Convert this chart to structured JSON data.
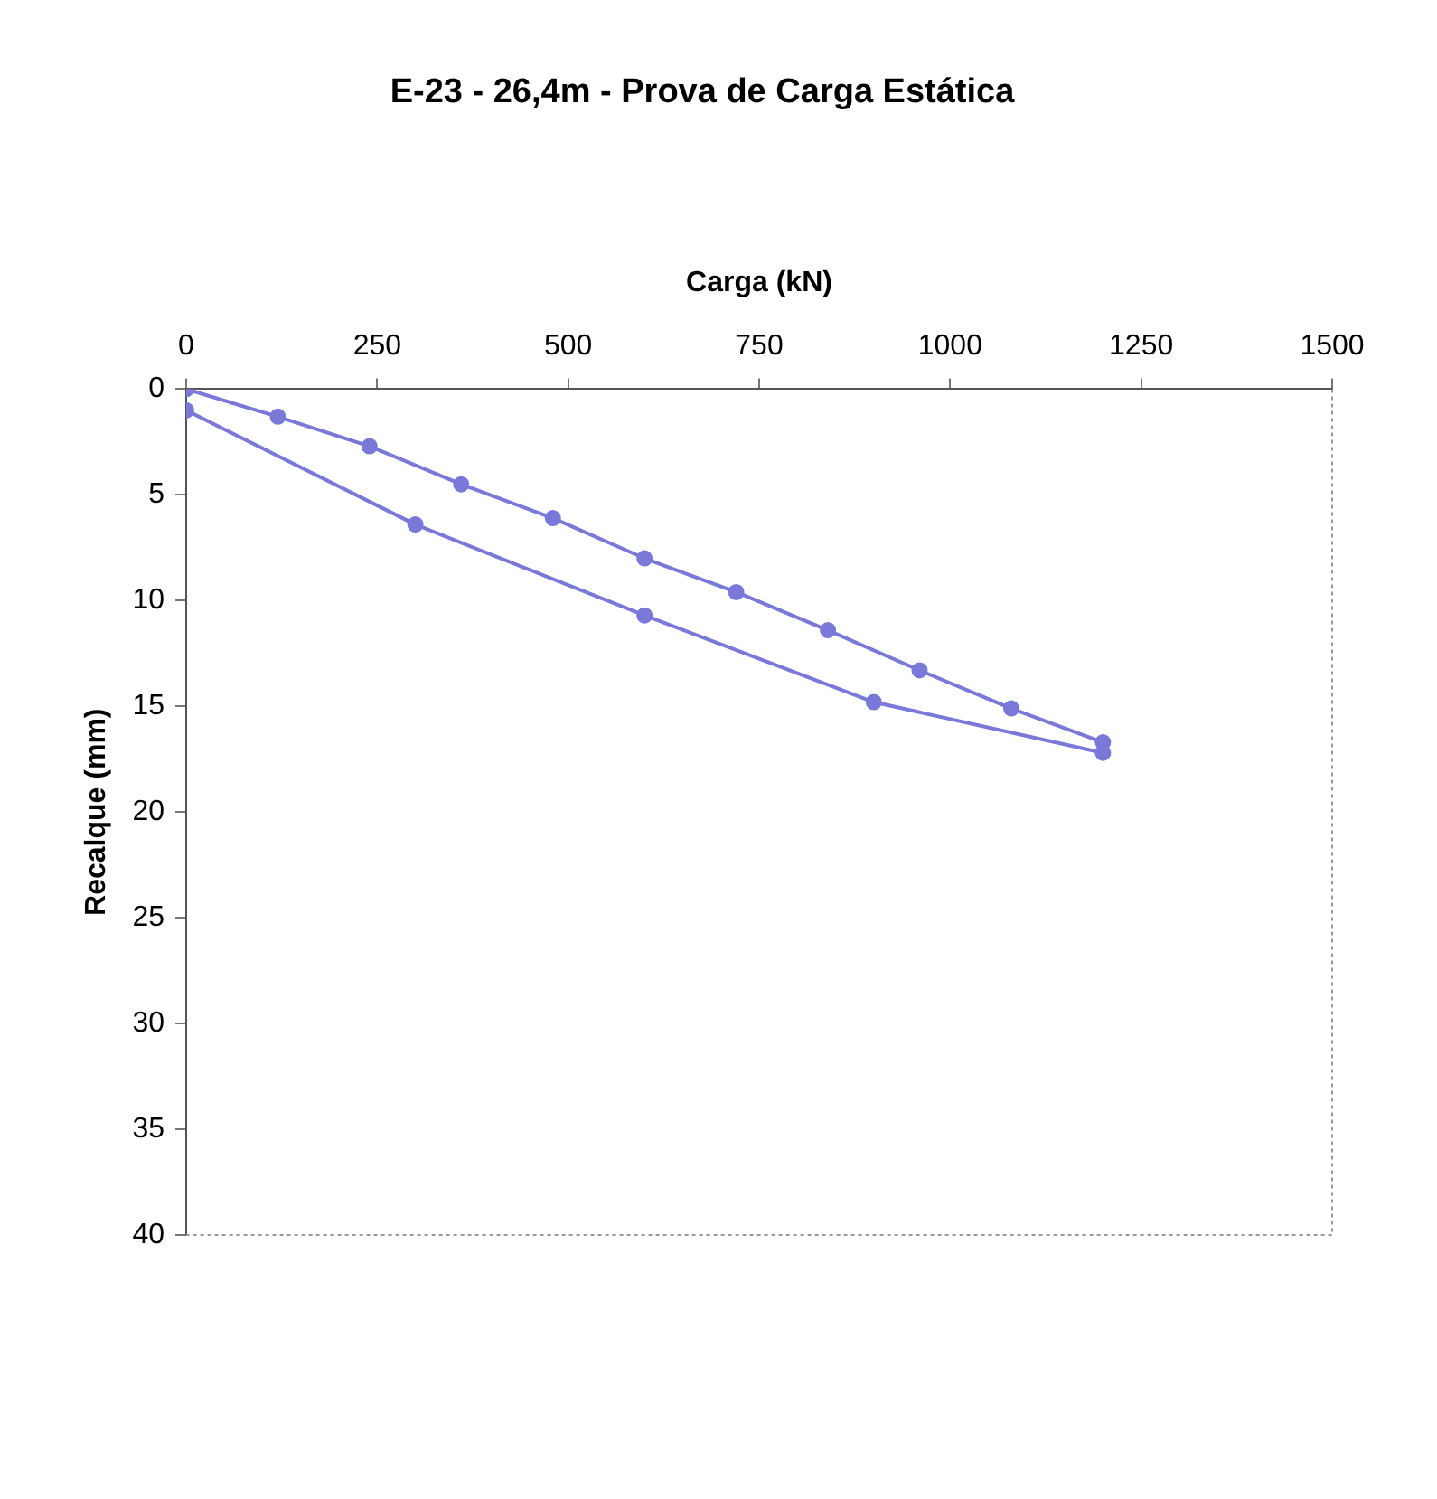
{
  "chart_data": {
    "type": "line",
    "title": "E-23 - 26,4m - Prova de Carga Estática",
    "xlabel": "Carga (kN)",
    "ylabel": "Recalque (mm)",
    "series": [
      {
        "color": "#7a78d8",
        "x": [
          0,
          120,
          240,
          360,
          480,
          600,
          720,
          840,
          960,
          1080,
          1200,
          1200,
          900,
          600,
          300,
          0
        ],
        "values": [
          0,
          1.3,
          2.7,
          4.5,
          6.1,
          8.0,
          9.6,
          11.4,
          13.3,
          15.1,
          16.7,
          17.2,
          14.8,
          10.7,
          6.4,
          1.0
        ]
      }
    ],
    "xlim": [
      0,
      1500
    ],
    "xticks": [
      0,
      250,
      500,
      750,
      1000,
      1250,
      1500
    ],
    "ylim": [
      40,
      0
    ],
    "yticks": [
      0,
      5,
      10,
      15,
      20,
      25,
      30,
      35,
      40
    ],
    "grid": false,
    "legend": false,
    "marker": "circle",
    "line_style": "solid"
  }
}
